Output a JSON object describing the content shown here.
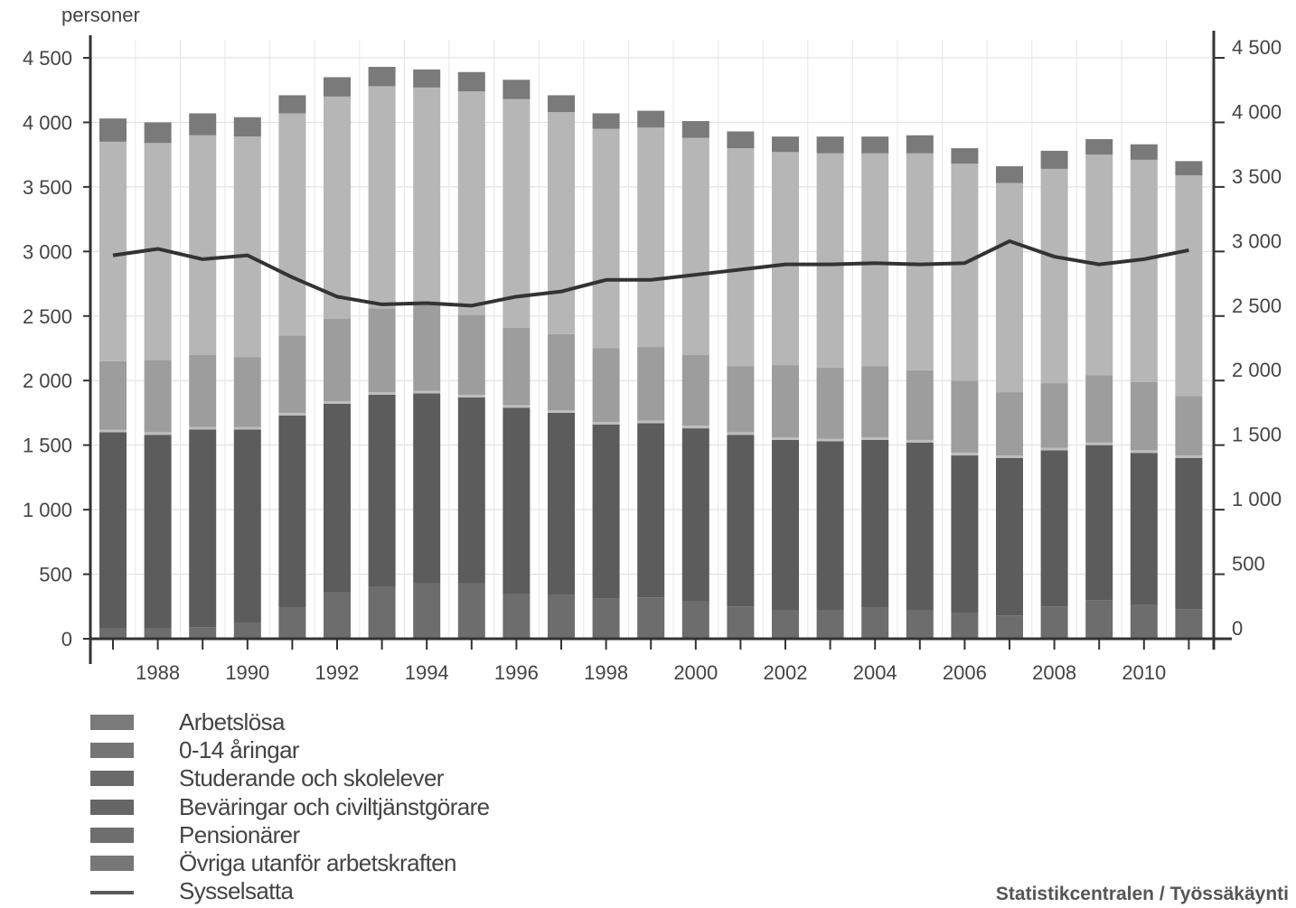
{
  "chart_data": {
    "type": "bar",
    "stacked": true,
    "y_unit_label": "personer",
    "ylim": [
      0,
      4500
    ],
    "yticks": [
      0,
      500,
      1000,
      1500,
      2000,
      2500,
      3000,
      3500,
      4000,
      4500
    ],
    "ytick_labels": [
      "0",
      "500",
      "1 000",
      "1 500",
      "2 000",
      "2 500",
      "3 000",
      "3 500",
      "4 000",
      "4 500"
    ],
    "y2ticks": [
      0,
      500,
      1000,
      1500,
      2000,
      2500,
      3000,
      3500,
      4000,
      4500
    ],
    "y2tick_labels": [
      "0",
      "500",
      "1 000",
      "1 500",
      "2 000",
      "2 500",
      "3 000",
      "3 500",
      "4 000",
      "4 500"
    ],
    "grid": true,
    "legend_placement": "bottom-left",
    "categories": [
      1987,
      1988,
      1989,
      1990,
      1991,
      1992,
      1993,
      1994,
      1995,
      1996,
      1997,
      1998,
      1999,
      2000,
      2001,
      2002,
      2003,
      2004,
      2005,
      2006,
      2007,
      2008,
      2009,
      2010,
      2011
    ],
    "xtick_labels": [
      "1988",
      "1990",
      "1992",
      "1994",
      "1996",
      "1998",
      "2000",
      "2002",
      "2004",
      "2006",
      "2008",
      "2010"
    ],
    "series": [
      {
        "name": "Övriga utanför arbetskraften",
        "color": "#6d6d6d",
        "values": [
          80,
          80,
          90,
          120,
          240,
          360,
          400,
          430,
          430,
          350,
          340,
          310,
          320,
          290,
          250,
          220,
          220,
          240,
          220,
          200,
          180,
          250,
          300,
          260,
          230
        ]
      },
      {
        "name": "Pensionärer",
        "color": "#5c5c5c",
        "values": [
          1520,
          1500,
          1530,
          1500,
          1490,
          1460,
          1490,
          1470,
          1440,
          1440,
          1410,
          1350,
          1350,
          1340,
          1330,
          1320,
          1310,
          1300,
          1300,
          1220,
          1220,
          1210,
          1200,
          1180,
          1170
        ]
      },
      {
        "name": "Bevaringar och civiltjanst",
        "color": "#bdbdbd",
        "values": [
          20,
          20,
          20,
          20,
          20,
          20,
          20,
          20,
          20,
          20,
          20,
          20,
          20,
          20,
          20,
          20,
          20,
          20,
          20,
          20,
          20,
          20,
          20,
          20,
          20
        ]
      },
      {
        "name": "Studerande och skolelever",
        "color": "#9d9d9d",
        "values": [
          530,
          560,
          560,
          540,
          600,
          640,
          650,
          680,
          620,
          600,
          590,
          570,
          570,
          550,
          510,
          560,
          550,
          550,
          540,
          560,
          490,
          500,
          520,
          530,
          460
        ]
      },
      {
        "name": "0-14 åringar",
        "color": "#b6b6b6",
        "values": [
          1700,
          1680,
          1700,
          1710,
          1720,
          1720,
          1720,
          1670,
          1730,
          1770,
          1720,
          1700,
          1700,
          1680,
          1690,
          1650,
          1660,
          1650,
          1680,
          1680,
          1620,
          1660,
          1710,
          1720,
          1710
        ]
      },
      {
        "name": "Arbetslösa",
        "color": "#7a7a7a",
        "values": [
          180,
          160,
          170,
          150,
          140,
          150,
          150,
          140,
          150,
          150,
          130,
          120,
          130,
          130,
          130,
          120,
          130,
          130,
          140,
          120,
          130,
          140,
          120,
          120,
          110
        ]
      }
    ],
    "line": {
      "name": "Sysselsatta",
      "color": "#333333",
      "values": [
        2970,
        3020,
        2940,
        2970,
        2800,
        2650,
        2590,
        2600,
        2580,
        2650,
        2690,
        2780,
        2780,
        2820,
        2860,
        2900,
        2900,
        2910,
        2900,
        2910,
        3080,
        2960,
        2900,
        2940,
        3010
      ]
    }
  },
  "legend": [
    {
      "label": "Arbetslösa",
      "color": "#7a7a7a"
    },
    {
      "label": "0-14 åringar",
      "color": "#757575"
    },
    {
      "label": "Studerande och skolelever",
      "color": "#6a6a6a"
    },
    {
      "label": "Beväringar och civiltjänstgörare",
      "color": "#666666"
    },
    {
      "label": "Pensionärer",
      "color": "#6e6e6e"
    },
    {
      "label": "Övriga utanför arbetskraften",
      "color": "#777777"
    },
    {
      "label": "Sysselsatta",
      "color": "#5a5a5a",
      "kind": "line"
    }
  ],
  "source": "Statistikcentralen / Työssäkäynti"
}
